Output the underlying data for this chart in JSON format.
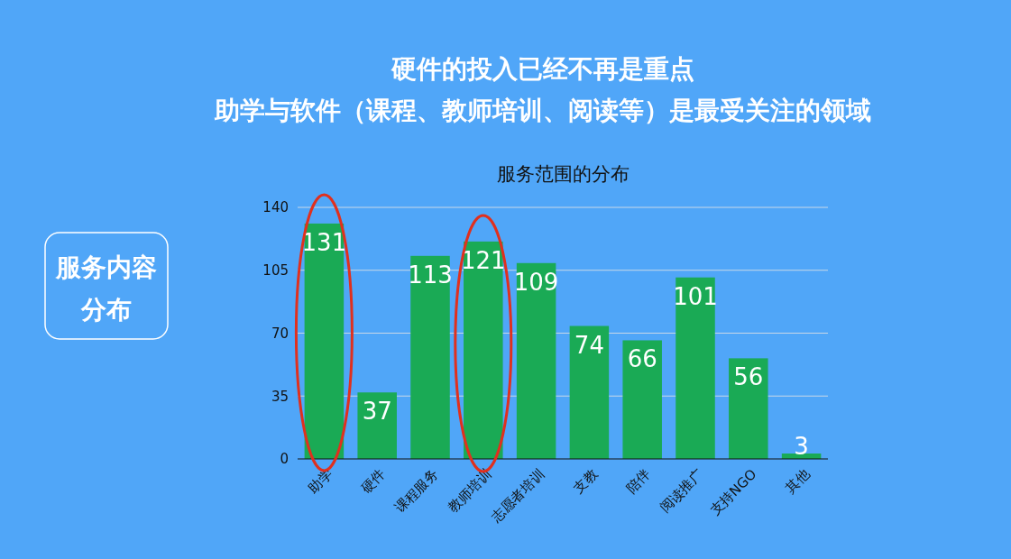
{
  "chart_data": {
    "type": "bar",
    "title": "硬件的投入已经不再是重点",
    "subtitle": "助学与软件（课程、教师培训、阅读等）是最受关注的领域",
    "annotations": [
      "服务范围的分布",
      "服务内容",
      "分布"
    ],
    "categories": [
      "助学",
      "硬件",
      "课程服务",
      "教师培训",
      "志愿者培训",
      "支教",
      "陪伴",
      "阅读推广",
      "支持NGO",
      "其他"
    ],
    "values": [
      131,
      37,
      113,
      121,
      109,
      74,
      66,
      101,
      56,
      3
    ],
    "color": "#1aaa55",
    "ylim": [
      0,
      140
    ],
    "yticks": [
      0,
      35,
      70,
      105,
      140
    ],
    "grid": "y",
    "data_labels": true
  }
}
